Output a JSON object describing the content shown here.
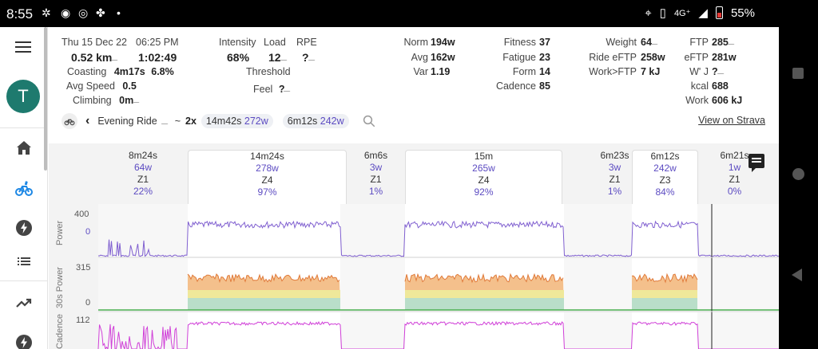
{
  "status_bar": {
    "time": "8:55",
    "network": "4G⁺",
    "battery": "55%"
  },
  "sidebar": {
    "avatar_letter": "T",
    "items": [
      "menu-icon",
      "home-icon",
      "bike-icon",
      "bolt-icon",
      "list-icon",
      "trend-icon",
      "bolt-icon"
    ]
  },
  "summary": {
    "date": "Thu 15 Dec 22",
    "time_of_day": "06:25 PM",
    "distance": "0.52 km",
    "duration": "1:02:49",
    "coasting_label": "Coasting",
    "coasting_time": "4m17s",
    "coasting_pct": "6.8%",
    "avg_speed_label": "Avg Speed",
    "avg_speed": "0.5",
    "climbing_label": "Climbing",
    "climbing": "0m",
    "intensity_label": "Intensity",
    "intensity": "68%",
    "load_label": "Load",
    "load": "12",
    "rpe_label": "RPE",
    "rpe": "?",
    "threshold_label": "Threshold",
    "feel_label": "Feel",
    "feel": "?",
    "norm_label": "Norm",
    "norm": "194w",
    "avg_label": "Avg",
    "avg": "162w",
    "var_label": "Var",
    "var": "1.19",
    "fitness_label": "Fitness",
    "fitness": "37",
    "fatigue_label": "Fatigue",
    "fatigue": "23",
    "form_label": "Form",
    "form": "14",
    "cadence_label": "Cadence",
    "cadence": "85",
    "weight_label": "Weight",
    "weight": "64",
    "ride_eftp_label": "Ride eFTP",
    "ride_eftp": "258w",
    "work_ftp_label": "Work>FTP",
    "work_ftp": "7 kJ",
    "ftp_label": "FTP",
    "ftp": "285",
    "eftp_label": "eFTP",
    "eftp": "281w",
    "wprime_label": "W' J",
    "wprime": "?",
    "kcal_label": "kcal",
    "kcal": "688",
    "work_label": "Work",
    "work": "606 kJ"
  },
  "ride": {
    "name": "Evening Ride",
    "tilde": "~",
    "reps": "2x",
    "chip1_time": "14m42s",
    "chip1_power": "272w",
    "chip2_time": "6m12s",
    "chip2_power": "242w",
    "strava_link": "View on Strava"
  },
  "intervals": [
    {
      "duration": "8m24s",
      "power": "64w",
      "zone": "Z1",
      "pct": "22%",
      "active": false
    },
    {
      "duration": "14m24s",
      "power": "278w",
      "zone": "Z4",
      "pct": "97%",
      "active": true
    },
    {
      "duration": "6m6s",
      "power": "3w",
      "zone": "Z1",
      "pct": "1%",
      "active": false
    },
    {
      "duration": "15m",
      "power": "265w",
      "zone": "Z4",
      "pct": "92%",
      "active": true
    },
    {
      "duration": "6m23s",
      "power": "3w",
      "zone": "Z1",
      "pct": "1%",
      "active": false
    },
    {
      "duration": "6m12s",
      "power": "242w",
      "zone": "Z3",
      "pct": "84%",
      "active": true
    },
    {
      "duration": "6m21s",
      "power": "1w",
      "zone": "Z1",
      "pct": "0%",
      "active": false
    }
  ],
  "plots": {
    "power": {
      "label": "Power",
      "ticks": [
        "400",
        "0"
      ]
    },
    "power30": {
      "label": "30s Power",
      "ticks": [
        "315",
        "0"
      ]
    },
    "cadence": {
      "label": "Cadence",
      "ticks": [
        "112"
      ]
    }
  },
  "colors": {
    "accent": "#5c4bc2",
    "power_line": "#8060d0",
    "cadence_line": "#d040d8",
    "avatar": "#1e7a6e"
  }
}
